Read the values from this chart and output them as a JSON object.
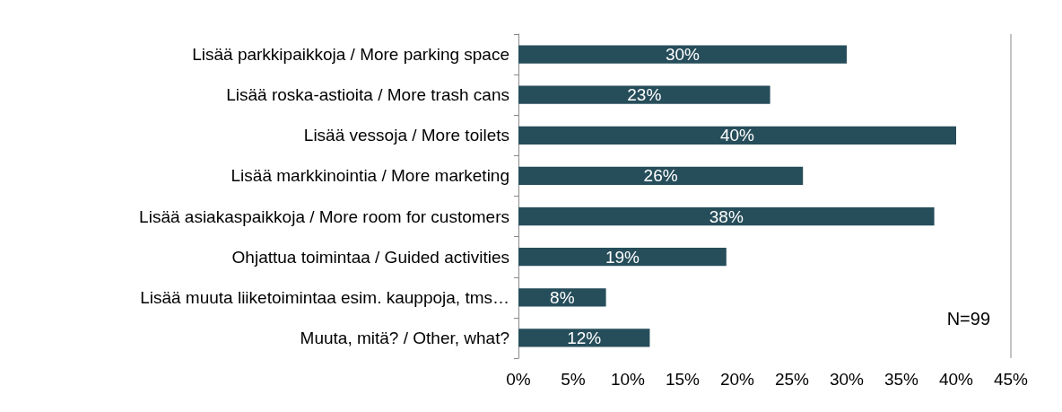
{
  "chart_data": {
    "type": "bar",
    "orientation": "horizontal",
    "categories": [
      "Lisää parkkipaikkoja / More parking space",
      "Lisää roska-astioita / More trash cans",
      "Lisää vessoja / More toilets",
      "Lisää markkinointia / More marketing",
      "Lisää asiakaspaikkoja / More room for customers",
      "Ohjattua toimintaa / Guided activities",
      "Lisää muuta liiketoimintaa esim. kauppoja, tms…",
      "Muuta, mitä? / Other, what?"
    ],
    "values": [
      30,
      23,
      40,
      26,
      38,
      19,
      8,
      12
    ],
    "value_labels": [
      "30%",
      "23%",
      "40%",
      "26%",
      "38%",
      "19%",
      "8%",
      "12%"
    ],
    "color": "#264d5a",
    "xlim": [
      0,
      45
    ],
    "xticks": [
      {
        "value": 0,
        "label": "0%"
      },
      {
        "value": 5,
        "label": "5%"
      },
      {
        "value": 10,
        "label": "10%"
      },
      {
        "value": 15,
        "label": "15%"
      },
      {
        "value": 20,
        "label": "20%"
      },
      {
        "value": 25,
        "label": "25%"
      },
      {
        "value": 30,
        "label": "30%"
      },
      {
        "value": 35,
        "label": "35%"
      },
      {
        "value": 40,
        "label": "40%"
      },
      {
        "value": 45,
        "label": "45%"
      }
    ],
    "grid": false,
    "annotations": [
      "N=99"
    ]
  }
}
